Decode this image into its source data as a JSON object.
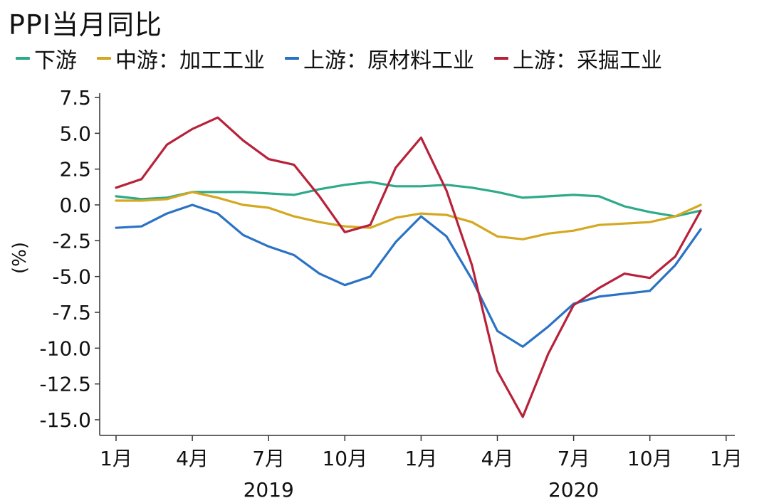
{
  "title": "PPI当月同比",
  "chart_data": {
    "type": "line",
    "title": "PPI当月同比",
    "ylabel": "(%)",
    "ylim": [
      -15.0,
      7.5
    ],
    "yticks": [
      "7.5",
      "5.0",
      "2.5",
      "0.0",
      "-2.5",
      "-5.0",
      "-7.5",
      "-10.0",
      "-12.5",
      "-15.0"
    ],
    "ytick_values": [
      7.5,
      5.0,
      2.5,
      0.0,
      -2.5,
      -5.0,
      -7.5,
      -10.0,
      -12.5,
      -15.0
    ],
    "x": [
      "2019-01",
      "2019-02",
      "2019-03",
      "2019-04",
      "2019-05",
      "2019-06",
      "2019-07",
      "2019-08",
      "2019-09",
      "2019-10",
      "2019-11",
      "2019-12",
      "2020-01",
      "2020-02",
      "2020-03",
      "2020-04",
      "2020-05",
      "2020-06",
      "2020-07",
      "2020-08",
      "2020-09",
      "2020-10",
      "2020-11",
      "2020-12"
    ],
    "xticks": [
      {
        "x": "2019-01",
        "label": "1月"
      },
      {
        "x": "2019-04",
        "label": "4月"
      },
      {
        "x": "2019-07",
        "label": "7月"
      },
      {
        "x": "2019-10",
        "label": "10月"
      },
      {
        "x": "2020-01",
        "label": "1月"
      },
      {
        "x": "2020-04",
        "label": "4月"
      },
      {
        "x": "2020-07",
        "label": "7月"
      },
      {
        "x": "2020-10",
        "label": "10月"
      },
      {
        "x": "2021-01",
        "label": "1月"
      }
    ],
    "year_labels": [
      {
        "x": "2019-07",
        "label": "2019"
      },
      {
        "x": "2020-07",
        "label": "2020"
      }
    ],
    "legend_position": "top",
    "grid": false,
    "series": [
      {
        "name": "下游",
        "color": "#2daa8a",
        "values": [
          0.6,
          0.4,
          0.5,
          0.9,
          0.9,
          0.9,
          0.8,
          0.7,
          1.1,
          1.4,
          1.6,
          1.3,
          1.3,
          1.4,
          1.2,
          0.9,
          0.5,
          0.6,
          0.7,
          0.6,
          -0.1,
          -0.5,
          -0.8,
          -0.4
        ]
      },
      {
        "name": "中游：加工工业",
        "color": "#d4a820",
        "values": [
          0.3,
          0.3,
          0.4,
          0.9,
          0.5,
          0.0,
          -0.2,
          -0.8,
          -1.2,
          -1.5,
          -1.6,
          -0.9,
          -0.6,
          -0.7,
          -1.2,
          -2.2,
          -2.4,
          -2.0,
          -1.8,
          -1.4,
          -1.3,
          -1.2,
          -0.8,
          0.0
        ]
      },
      {
        "name": "上游：原材料工业",
        "color": "#2a72c4",
        "values": [
          -1.6,
          -1.5,
          -0.6,
          0.0,
          -0.6,
          -2.1,
          -2.9,
          -3.5,
          -4.8,
          -5.6,
          -5.0,
          -2.6,
          -0.8,
          -2.2,
          -5.2,
          -8.8,
          -9.9,
          -8.5,
          -6.9,
          -6.4,
          -6.2,
          -6.0,
          -4.2,
          -1.7
        ]
      },
      {
        "name": "上游：采掘工业",
        "color": "#b8213a",
        "values": [
          1.2,
          1.8,
          4.2,
          5.3,
          6.1,
          4.5,
          3.2,
          2.8,
          0.6,
          -1.9,
          -1.4,
          2.6,
          4.7,
          1.0,
          -4.2,
          -11.6,
          -14.8,
          -10.4,
          -7.0,
          -5.8,
          -4.8,
          -5.1,
          -3.6,
          -0.4
        ]
      }
    ]
  }
}
